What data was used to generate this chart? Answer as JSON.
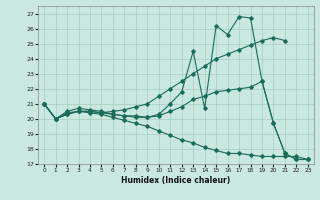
{
  "xlabel": "Humidex (Indice chaleur)",
  "bg_color": "#c8e8e0",
  "line_color": "#1a6b5a",
  "grid_color": "#a8ccc4",
  "xlim": [
    -0.5,
    23.5
  ],
  "ylim": [
    17,
    27.5
  ],
  "yticks": [
    17,
    18,
    19,
    20,
    21,
    22,
    23,
    24,
    25,
    26,
    27
  ],
  "xticks": [
    0,
    1,
    2,
    3,
    4,
    5,
    6,
    7,
    8,
    9,
    10,
    11,
    12,
    13,
    14,
    15,
    16,
    17,
    18,
    19,
    20,
    21,
    22,
    23
  ],
  "lines": [
    {
      "x": [
        0,
        1,
        2,
        3,
        4,
        5,
        6,
        7,
        8,
        9,
        10,
        11,
        12,
        13,
        14,
        15,
        16,
        17,
        18,
        19,
        20,
        21,
        22,
        23
      ],
      "y": [
        21,
        20,
        20.5,
        20.7,
        20.6,
        20.5,
        20.3,
        20.2,
        20.2,
        20.1,
        20.3,
        21.0,
        21.8,
        24.5,
        20.7,
        26.2,
        25.6,
        26.8,
        26.7,
        22.5,
        19.7,
        17.7,
        17.3,
        17.3
      ]
    },
    {
      "x": [
        0,
        1,
        2,
        3,
        4,
        5,
        6,
        7,
        8,
        9,
        10,
        11,
        12,
        13,
        14,
        15,
        16,
        17,
        18,
        19,
        20,
        21
      ],
      "y": [
        21,
        20,
        20.3,
        20.5,
        20.5,
        20.4,
        20.5,
        20.6,
        20.8,
        21.0,
        21.5,
        22.0,
        22.5,
        23.0,
        23.5,
        24.0,
        24.3,
        24.6,
        24.9,
        25.2,
        25.4,
        25.2
      ]
    },
    {
      "x": [
        0,
        1,
        2,
        3,
        4,
        5,
        6,
        7,
        8,
        9,
        10,
        11,
        12,
        13,
        14,
        15,
        16,
        17,
        18,
        19,
        20,
        21,
        22,
        23
      ],
      "y": [
        21,
        20,
        20.4,
        20.5,
        20.5,
        20.4,
        20.3,
        20.2,
        20.1,
        20.1,
        20.2,
        20.5,
        20.8,
        21.3,
        21.5,
        21.8,
        21.9,
        22.0,
        22.1,
        22.5,
        19.7,
        17.7,
        17.3,
        17.3
      ]
    },
    {
      "x": [
        0,
        1,
        2,
        3,
        4,
        5,
        6,
        7,
        8,
        9,
        10,
        11,
        12,
        13,
        14,
        15,
        16,
        17,
        18,
        19,
        20,
        21,
        22,
        23
      ],
      "y": [
        21,
        20,
        20.3,
        20.5,
        20.4,
        20.3,
        20.1,
        19.9,
        19.7,
        19.5,
        19.2,
        18.9,
        18.6,
        18.4,
        18.1,
        17.9,
        17.7,
        17.7,
        17.6,
        17.5,
        17.5,
        17.5,
        17.5,
        17.3
      ]
    }
  ]
}
